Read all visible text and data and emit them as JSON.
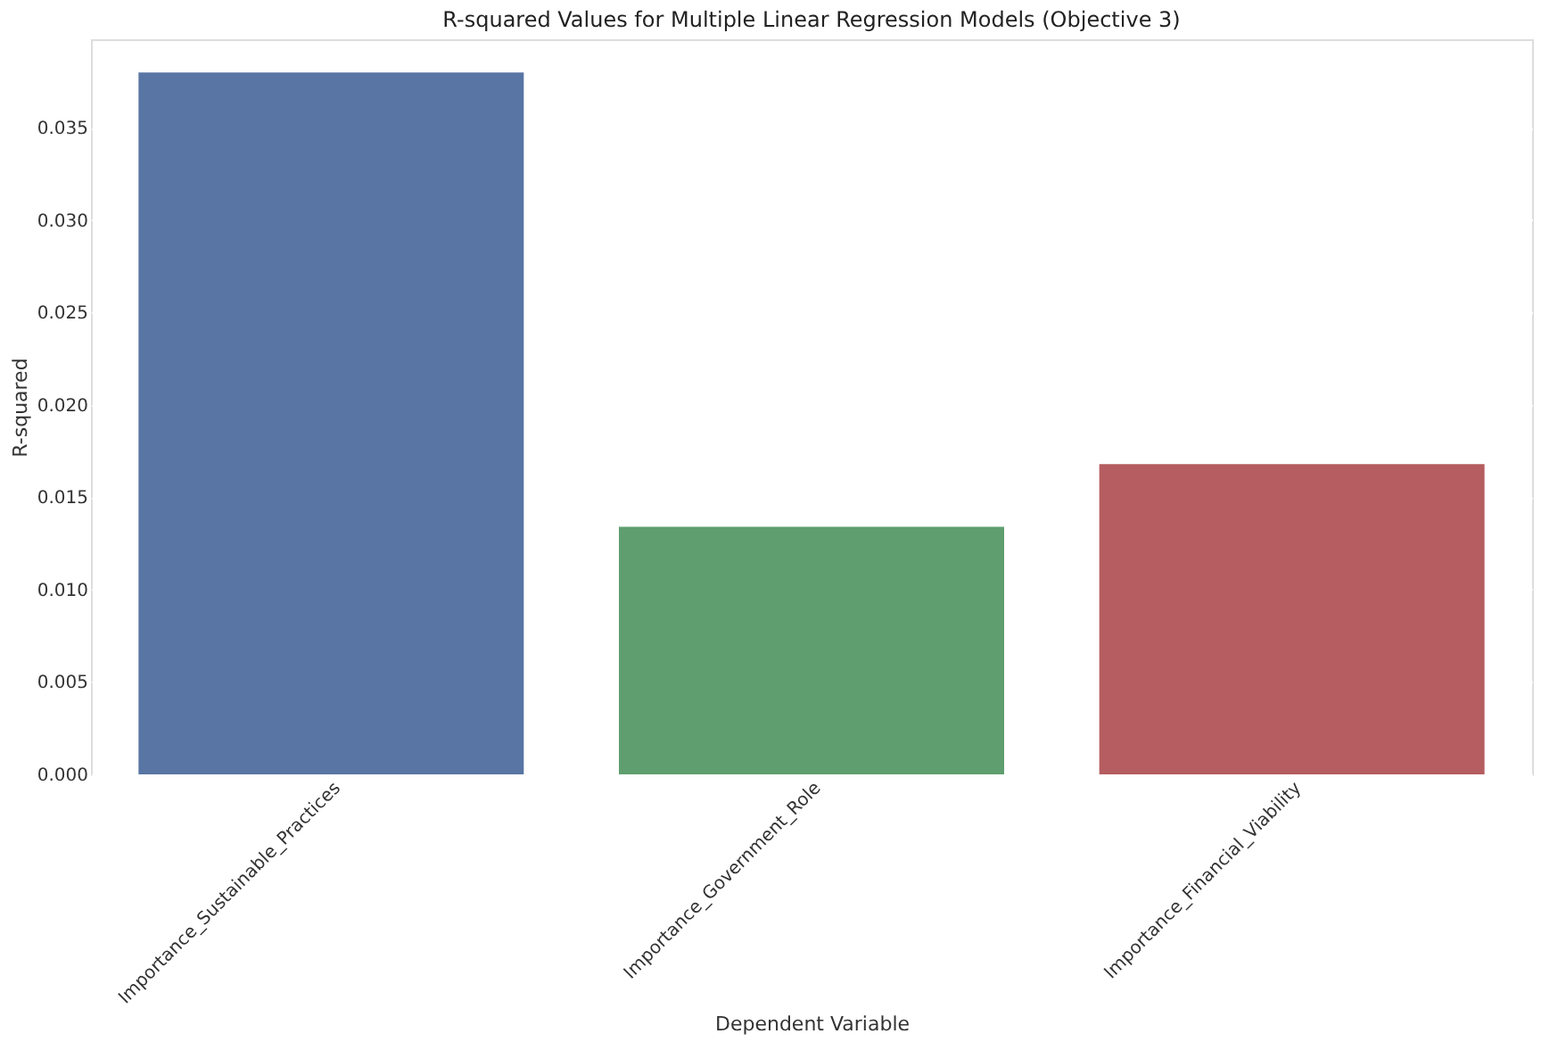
{
  "chart_data": {
    "type": "bar",
    "title": "R-squared Values for Multiple Linear Regression Models (Objective 3)",
    "xlabel": "Dependent Variable",
    "ylabel": "R-squared",
    "categories": [
      "Importance_Sustainable_Practices",
      "Importance_Government_Role",
      "Importance_Financial_Viability"
    ],
    "values": [
      0.038,
      0.0134,
      0.0168
    ],
    "colors": [
      "#5875a4",
      "#5f9e6e",
      "#b55d60"
    ],
    "ylim": [
      0,
      0.0398
    ],
    "yticks": [
      {
        "value": 0,
        "label": "0.000"
      },
      {
        "value": 0.005,
        "label": "0.005"
      },
      {
        "value": 0.01,
        "label": "0.010"
      },
      {
        "value": 0.015,
        "label": "0.015"
      },
      {
        "value": 0.02,
        "label": "0.020"
      },
      {
        "value": 0.025,
        "label": "0.025"
      },
      {
        "value": 0.03,
        "label": "0.030"
      },
      {
        "value": 0.035,
        "label": "0.035"
      }
    ],
    "grid": "y",
    "legend": false
  }
}
